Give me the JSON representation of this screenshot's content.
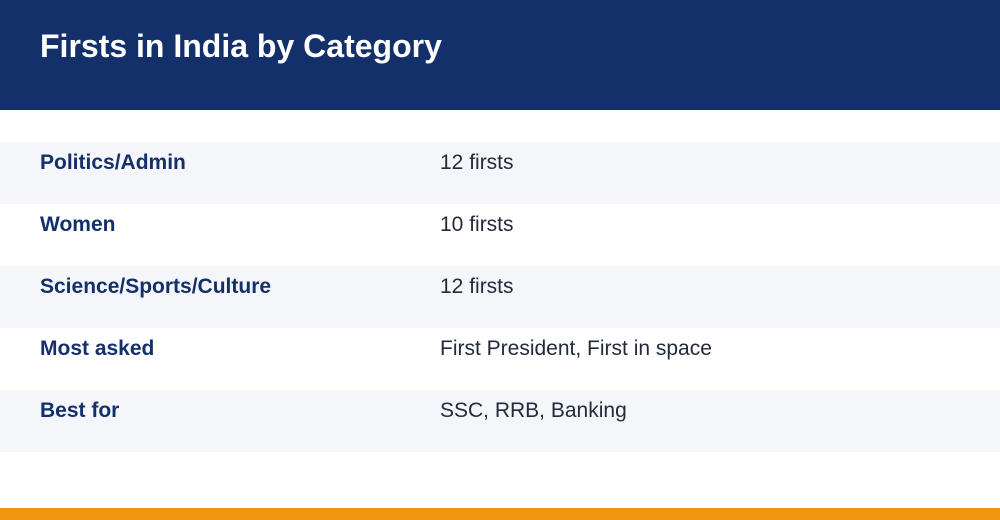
{
  "header": {
    "title": "Firsts in India by Category"
  },
  "table": {
    "rows": [
      {
        "label": "Politics/Admin",
        "value": "12 firsts"
      },
      {
        "label": "Women",
        "value": "10 firsts"
      },
      {
        "label": "Science/Sports/Culture",
        "value": "12 firsts"
      },
      {
        "label": "Most asked",
        "value": "First President, First in space"
      },
      {
        "label": "Best for",
        "value": "SSC, RRB, Banking"
      }
    ]
  },
  "colors": {
    "header_bg": "#14306b",
    "label_text": "#14306b",
    "row_shade": "#f5f6fa",
    "accent_bar": "#f0960f"
  }
}
